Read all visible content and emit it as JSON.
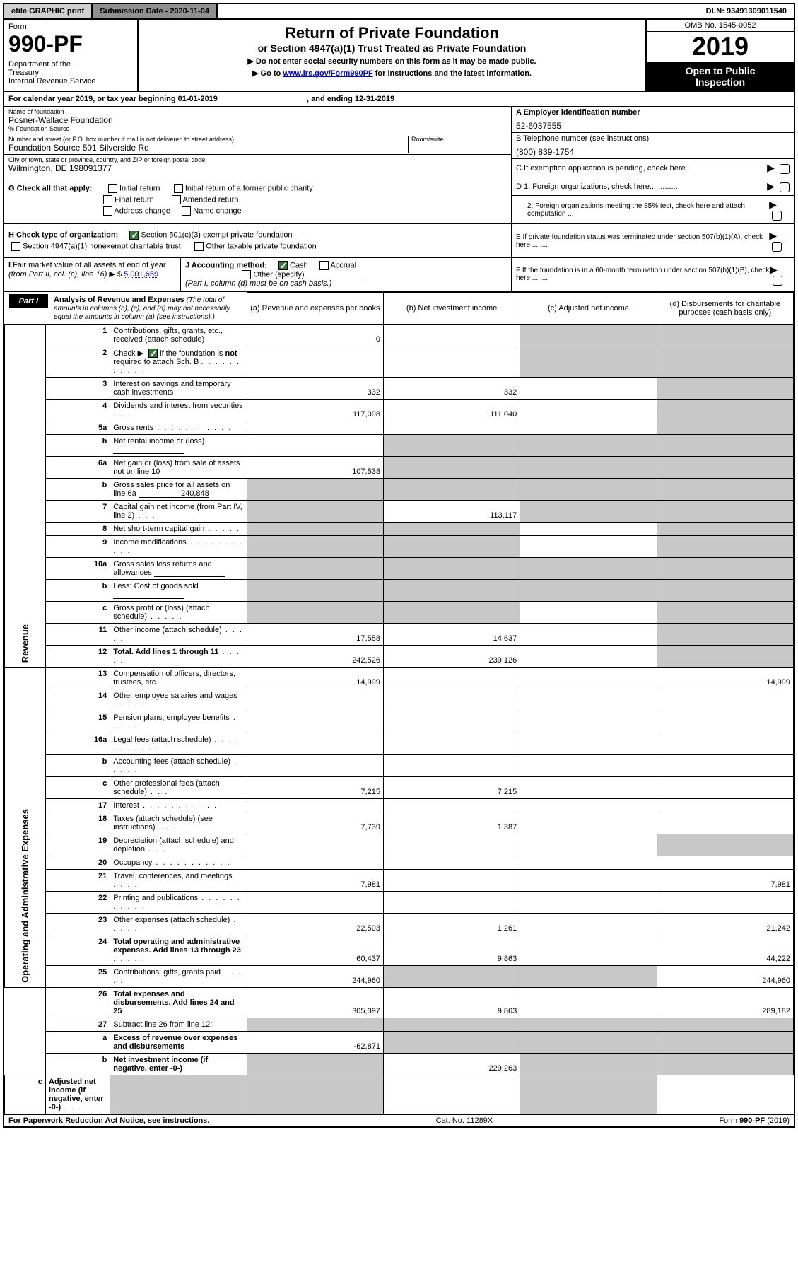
{
  "topbar": {
    "efile": "efile GRAPHIC print",
    "submission": "Submission Date - 2020-11-04",
    "dln": "DLN: 93491309011540"
  },
  "header": {
    "form_label": "Form",
    "form_num": "990-PF",
    "dept": "Department of the Treasury\nInternal Revenue Service",
    "title1": "Return of Private Foundation",
    "title2": "or Section 4947(a)(1) Trust Treated as Private Foundation",
    "instr1": "▶ Do not enter social security numbers on this form as it may be made public.",
    "instr2_pre": "▶ Go to ",
    "instr2_link": "www.irs.gov/Form990PF",
    "instr2_post": " for instructions and the latest information.",
    "omb": "OMB No. 1545-0052",
    "year": "2019",
    "open": "Open to Public Inspection"
  },
  "cal": "For calendar year 2019, or tax year beginning 01-01-2019",
  "cal_end": ", and ending 12-31-2019",
  "entity": {
    "name_lbl": "Name of foundation",
    "name": "Posner-Wallace Foundation",
    "care_lbl": "% Foundation Source",
    "street_lbl": "Number and street (or P.O. box number if mail is not delivered to street address)",
    "street": "Foundation Source 501 Silverside Rd",
    "room_lbl": "Room/suite",
    "city_lbl": "City or town, state or province, country, and ZIP or foreign postal code",
    "city": "Wilmington, DE  198091377"
  },
  "right": {
    "a_lbl": "A Employer identification number",
    "a_val": "52-6037555",
    "b_lbl": "B Telephone number (see instructions)",
    "b_val": "(800) 839-1754",
    "c_lbl": "C If exemption application is pending, check here",
    "d1": "D 1. Foreign organizations, check here.............",
    "d2": "2. Foreign organizations meeting the 85% test, check here and attach computation ...",
    "e": "E  If private foundation status was terminated under section 507(b)(1)(A), check here ........",
    "f": "F  If the foundation is in a 60-month termination under section 507(b)(1)(B), check here ........"
  },
  "g": {
    "lbl": "G Check all that apply:",
    "opts": [
      "Initial return",
      "Initial return of a former public charity",
      "Final return",
      "Amended return",
      "Address change",
      "Name change"
    ]
  },
  "h": {
    "lbl": "H Check type of organization:",
    "opt1": "Section 501(c)(3) exempt private foundation",
    "opt2": "Section 4947(a)(1) nonexempt charitable trust",
    "opt3": "Other taxable private foundation"
  },
  "i": {
    "lbl": "I Fair market value of all assets at end of year (from Part II, col. (c), line 16) ▶ $",
    "val": "5,001,659"
  },
  "j": {
    "lbl": "J Accounting method:",
    "cash": "Cash",
    "accrual": "Accrual",
    "other": "Other (specify)",
    "note": "(Part I, column (d) must be on cash basis.)"
  },
  "part": {
    "badge": "Part I",
    "title": "Analysis of Revenue and Expenses",
    "sub": "(The total of amounts in columns (b), (c), and (d) may not necessarily equal the amounts in column (a) (see instructions).)"
  },
  "cols": {
    "a": "(a)    Revenue and expenses per books",
    "b": "(b)   Net investment income",
    "c": "(c)  Adjusted net income",
    "d": "(d)  Disbursements for charitable purposes (cash basis only)"
  },
  "side": {
    "rev": "Revenue",
    "exp": "Operating and Administrative Expenses"
  },
  "rows": [
    {
      "n": "1",
      "d": "Contributions, gifts, grants, etc., received (attach schedule)",
      "a": "0",
      "b": "",
      "c": "g",
      "dd": "g"
    },
    {
      "n": "2",
      "d": "Check ▶ ☑ if the foundation is not required to attach Sch. B",
      "a": "",
      "b": "",
      "c": "g",
      "dd": "g",
      "special": "chk"
    },
    {
      "n": "3",
      "d": "Interest on savings and temporary cash investments",
      "a": "332",
      "b": "332",
      "c": "",
      "dd": "g"
    },
    {
      "n": "4",
      "d": "Dividends and interest from securities",
      "a": "117,098",
      "b": "111,040",
      "c": "",
      "dd": "g",
      "dots": "xs"
    },
    {
      "n": "5a",
      "d": "Gross rents",
      "a": "",
      "b": "",
      "c": "",
      "dd": "g",
      "dots": "l"
    },
    {
      "n": "b",
      "d": "Net rental income or (loss)",
      "a": "",
      "b": "g",
      "c": "g",
      "dd": "g",
      "uline": true
    },
    {
      "n": "6a",
      "d": "Net gain or (loss) from sale of assets not on line 10",
      "a": "107,538",
      "b": "g",
      "c": "g",
      "dd": "g"
    },
    {
      "n": "b",
      "d": "Gross sales price for all assets on line 6a",
      "a": "g",
      "b": "g",
      "c": "g",
      "dd": "g",
      "uline": true,
      "uval": "240,848"
    },
    {
      "n": "7",
      "d": "Capital gain net income (from Part IV, line 2)",
      "a": "g",
      "b": "113,117",
      "c": "g",
      "dd": "g",
      "dots": "xs"
    },
    {
      "n": "8",
      "d": "Net short-term capital gain",
      "a": "g",
      "b": "g",
      "c": "",
      "dd": "g",
      "dots": "s"
    },
    {
      "n": "9",
      "d": "Income modifications",
      "a": "g",
      "b": "g",
      "c": "",
      "dd": "g",
      "dots": "l"
    },
    {
      "n": "10a",
      "d": "Gross sales less returns and allowances",
      "a": "g",
      "b": "g",
      "c": "g",
      "dd": "g",
      "uline": true
    },
    {
      "n": "b",
      "d": "Less: Cost of goods sold",
      "a": "g",
      "b": "g",
      "c": "g",
      "dd": "g",
      "dots": "xs",
      "uline": true
    },
    {
      "n": "c",
      "d": "Gross profit or (loss) (attach schedule)",
      "a": "g",
      "b": "g",
      "c": "",
      "dd": "g",
      "dots": "s"
    },
    {
      "n": "11",
      "d": "Other income (attach schedule)",
      "a": "17,558",
      "b": "14,637",
      "c": "",
      "dd": "g",
      "dots": "s"
    },
    {
      "n": "12",
      "d": "Total. Add lines 1 through 11",
      "a": "242,526",
      "b": "239,126",
      "c": "",
      "dd": "g",
      "bold": true,
      "dots": "s"
    },
    {
      "n": "13",
      "d": "Compensation of officers, directors, trustees, etc.",
      "a": "14,999",
      "b": "",
      "c": "",
      "dd": "14,999"
    },
    {
      "n": "14",
      "d": "Other employee salaries and wages",
      "a": "",
      "b": "",
      "c": "",
      "dd": "",
      "dots": "s"
    },
    {
      "n": "15",
      "d": "Pension plans, employee benefits",
      "a": "",
      "b": "",
      "c": "",
      "dd": "",
      "dots": "s"
    },
    {
      "n": "16a",
      "d": "Legal fees (attach schedule)",
      "a": "",
      "b": "",
      "c": "",
      "dd": "",
      "dots": "l"
    },
    {
      "n": "b",
      "d": "Accounting fees (attach schedule)",
      "a": "",
      "b": "",
      "c": "",
      "dd": "",
      "dots": "s"
    },
    {
      "n": "c",
      "d": "Other professional fees (attach schedule)",
      "a": "7,215",
      "b": "7,215",
      "c": "",
      "dd": "",
      "dots": "xs"
    },
    {
      "n": "17",
      "d": "Interest",
      "a": "",
      "b": "",
      "c": "",
      "dd": "",
      "dots": "l"
    },
    {
      "n": "18",
      "d": "Taxes (attach schedule) (see instructions)",
      "a": "7,739",
      "b": "1,387",
      "c": "",
      "dd": "",
      "dots": "xs"
    },
    {
      "n": "19",
      "d": "Depreciation (attach schedule) and depletion",
      "a": "",
      "b": "",
      "c": "",
      "dd": "g",
      "dots": "xs"
    },
    {
      "n": "20",
      "d": "Occupancy",
      "a": "",
      "b": "",
      "c": "",
      "dd": "",
      "dots": "l"
    },
    {
      "n": "21",
      "d": "Travel, conferences, and meetings",
      "a": "7,981",
      "b": "",
      "c": "",
      "dd": "7,981",
      "dots": "s"
    },
    {
      "n": "22",
      "d": "Printing and publications",
      "a": "",
      "b": "",
      "c": "",
      "dd": "",
      "dots": "l"
    },
    {
      "n": "23",
      "d": "Other expenses (attach schedule)",
      "a": "22,503",
      "b": "1,261",
      "c": "",
      "dd": "21,242",
      "dots": "s"
    },
    {
      "n": "24",
      "d": "Total operating and administrative expenses. Add lines 13 through 23",
      "a": "60,437",
      "b": "9,863",
      "c": "",
      "dd": "44,222",
      "bold": true,
      "dots": "s"
    },
    {
      "n": "25",
      "d": "Contributions, gifts, grants paid",
      "a": "244,960",
      "b": "g",
      "c": "g",
      "dd": "244,960",
      "dots": "s"
    },
    {
      "n": "26",
      "d": "Total expenses and disbursements. Add lines 24 and 25",
      "a": "305,397",
      "b": "9,863",
      "c": "",
      "dd": "289,182",
      "bold": true
    },
    {
      "n": "27",
      "d": "Subtract line 26 from line 12:",
      "a": "g",
      "b": "g",
      "c": "g",
      "dd": "g"
    },
    {
      "n": "a",
      "d": "Excess of revenue over expenses and disbursements",
      "a": "-62,871",
      "b": "g",
      "c": "g",
      "dd": "g",
      "bold": true
    },
    {
      "n": "b",
      "d": "Net investment income (if negative, enter -0-)",
      "a": "g",
      "b": "229,263",
      "c": "g",
      "dd": "g",
      "bold": true
    },
    {
      "n": "c",
      "d": "Adjusted net income (if negative, enter -0-)",
      "a": "g",
      "b": "g",
      "c": "",
      "dd": "g",
      "bold": true,
      "dots": "xs"
    }
  ],
  "footer": {
    "l": "For Paperwork Reduction Act Notice, see instructions.",
    "m": "Cat. No. 11289X",
    "r": "Form 990-PF (2019)"
  }
}
